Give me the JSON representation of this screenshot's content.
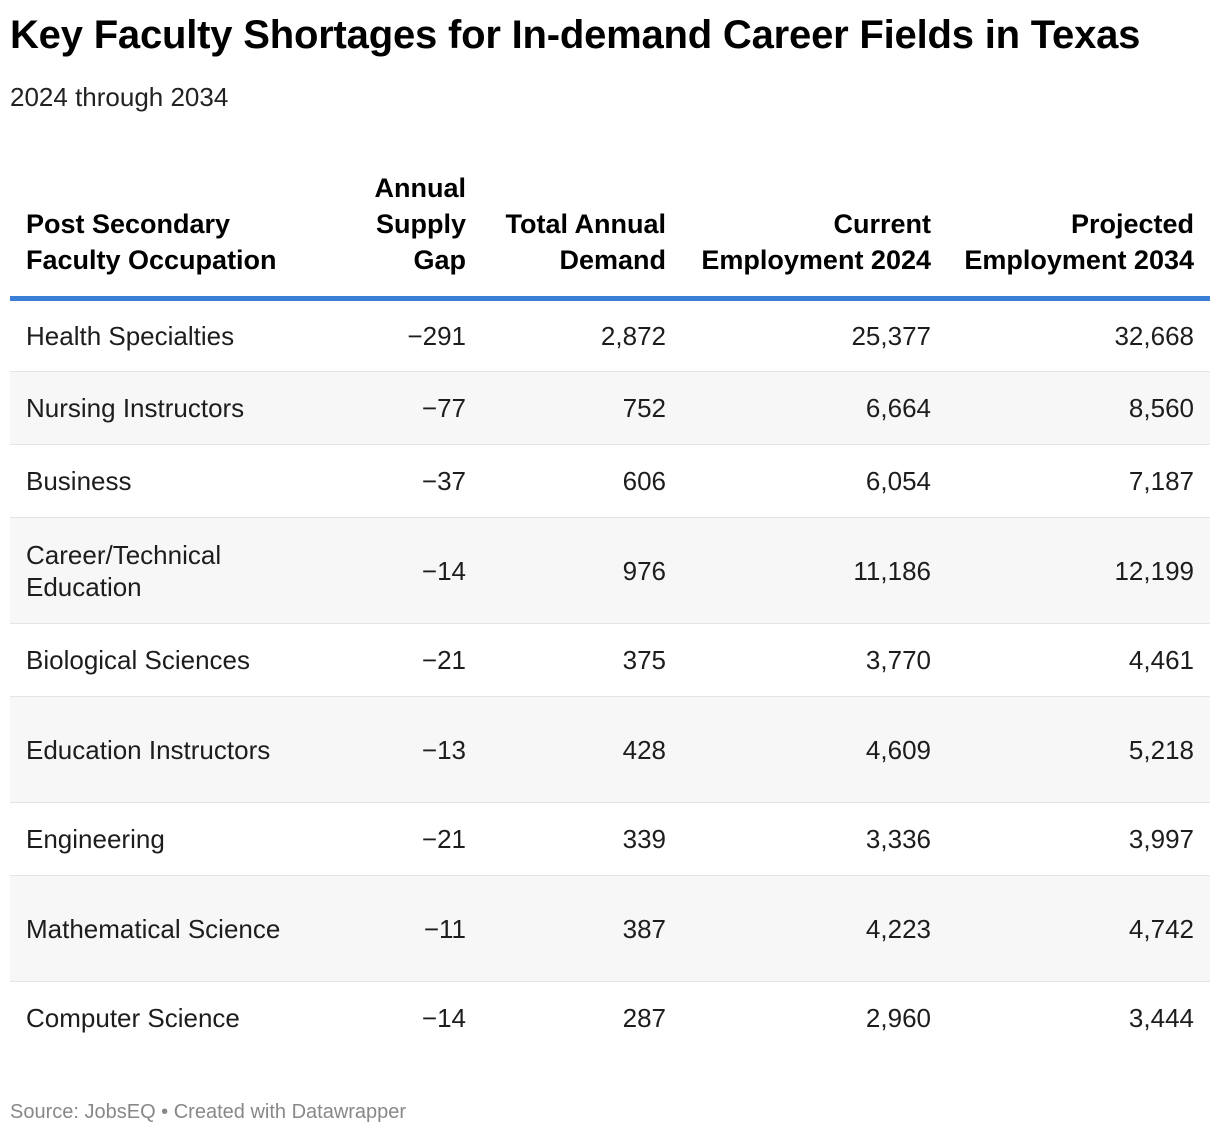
{
  "chart_data": {
    "type": "table",
    "title": "Key Faculty Shortages for In-demand Career Fields in Texas",
    "subtitle": "2024 through 2034",
    "columns": [
      "Post Secondary Faculty Occupation",
      "Annual Supply Gap",
      "Total Annual Demand",
      "Current Employment 2024",
      "Projected Employment 2034"
    ],
    "rows": [
      [
        "Health Specialties",
        "−291",
        "2,872",
        "25,377",
        "32,668"
      ],
      [
        "Nursing Instructors",
        "−77",
        "752",
        "6,664",
        "8,560"
      ],
      [
        "Business",
        "−37",
        "606",
        "6,054",
        "7,187"
      ],
      [
        "Career/Technical Education",
        "−14",
        "976",
        "11,186",
        "12,199"
      ],
      [
        "Biological Sciences",
        "−21",
        "375",
        "3,770",
        "4,461"
      ],
      [
        "Education Instructors",
        "−13",
        "428",
        "4,609",
        "5,218"
      ],
      [
        "Engineering",
        "−21",
        "339",
        "3,336",
        "3,997"
      ],
      [
        "Mathematical Science",
        "−11",
        "387",
        "4,223",
        "4,742"
      ],
      [
        "Computer Science",
        "−14",
        "287",
        "2,960",
        "3,444"
      ]
    ],
    "values": {
      "annual_supply_gap": [
        -291,
        -77,
        -37,
        -14,
        -21,
        -13,
        -21,
        -11,
        -14
      ],
      "total_annual_demand": [
        2872,
        752,
        606,
        976,
        375,
        428,
        339,
        387,
        287
      ],
      "current_employment_2024": [
        25377,
        6664,
        6054,
        11186,
        3770,
        4609,
        3336,
        4223,
        2960
      ],
      "projected_employment_2034": [
        32668,
        8560,
        7187,
        12199,
        4461,
        5218,
        3997,
        4742,
        3444
      ]
    },
    "source": "Source: JobsEQ • Created with Datawrapper"
  },
  "colors": {
    "header_rule": "#3a7fd5",
    "stripe": "#f7f7f7",
    "row_divider": "#e4e4e4",
    "source_text": "#888888"
  }
}
